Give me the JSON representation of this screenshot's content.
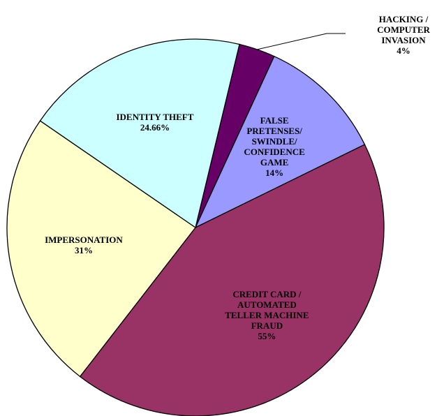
{
  "chart_data": {
    "type": "pie",
    "categories": [
      "HACKING /\nCOMPUTER\nINVASION",
      "FALSE\nPRETENSES/\nSWINDLE/\nCONFIDENCE\nGAME",
      "CREDIT CARD /\nAUTOMATED\nTELLER MACHINE\nFRAUD",
      "IMPERSONATION",
      "IDENTITY THEFT"
    ],
    "values": [
      4,
      14,
      55,
      31,
      24.66
    ],
    "value_labels": [
      "4%",
      "14%",
      "55%",
      "31%",
      "24.66%"
    ],
    "colors": [
      "#660066",
      "#9999ff",
      "#993366",
      "#ffffcc",
      "#ccffff"
    ]
  }
}
